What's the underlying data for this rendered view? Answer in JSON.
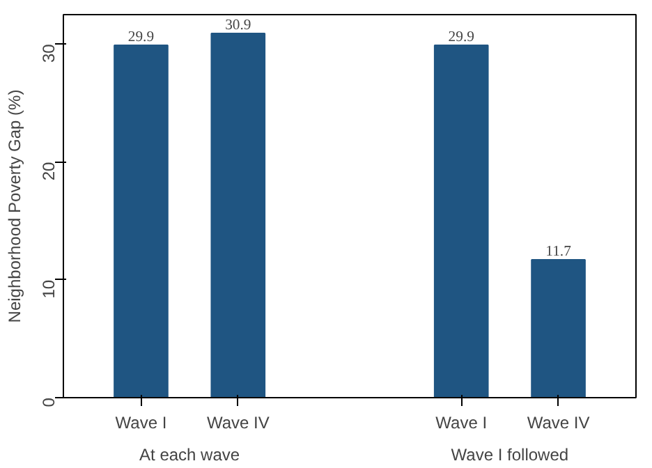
{
  "chart_data": {
    "type": "bar",
    "ylabel": "Neighborhood Poverty Gap (%)",
    "categories": [
      "Wave I",
      "Wave IV",
      "Wave I",
      "Wave IV"
    ],
    "values": [
      29.9,
      30.9,
      29.9,
      11.7
    ],
    "color": "#1f5582",
    "data_labels": true,
    "ylim": [
      0,
      32.5
    ],
    "yticks": [
      0,
      10,
      20,
      30
    ],
    "grid": false,
    "annotations": [
      "At each wave",
      "Wave I followed"
    ]
  }
}
